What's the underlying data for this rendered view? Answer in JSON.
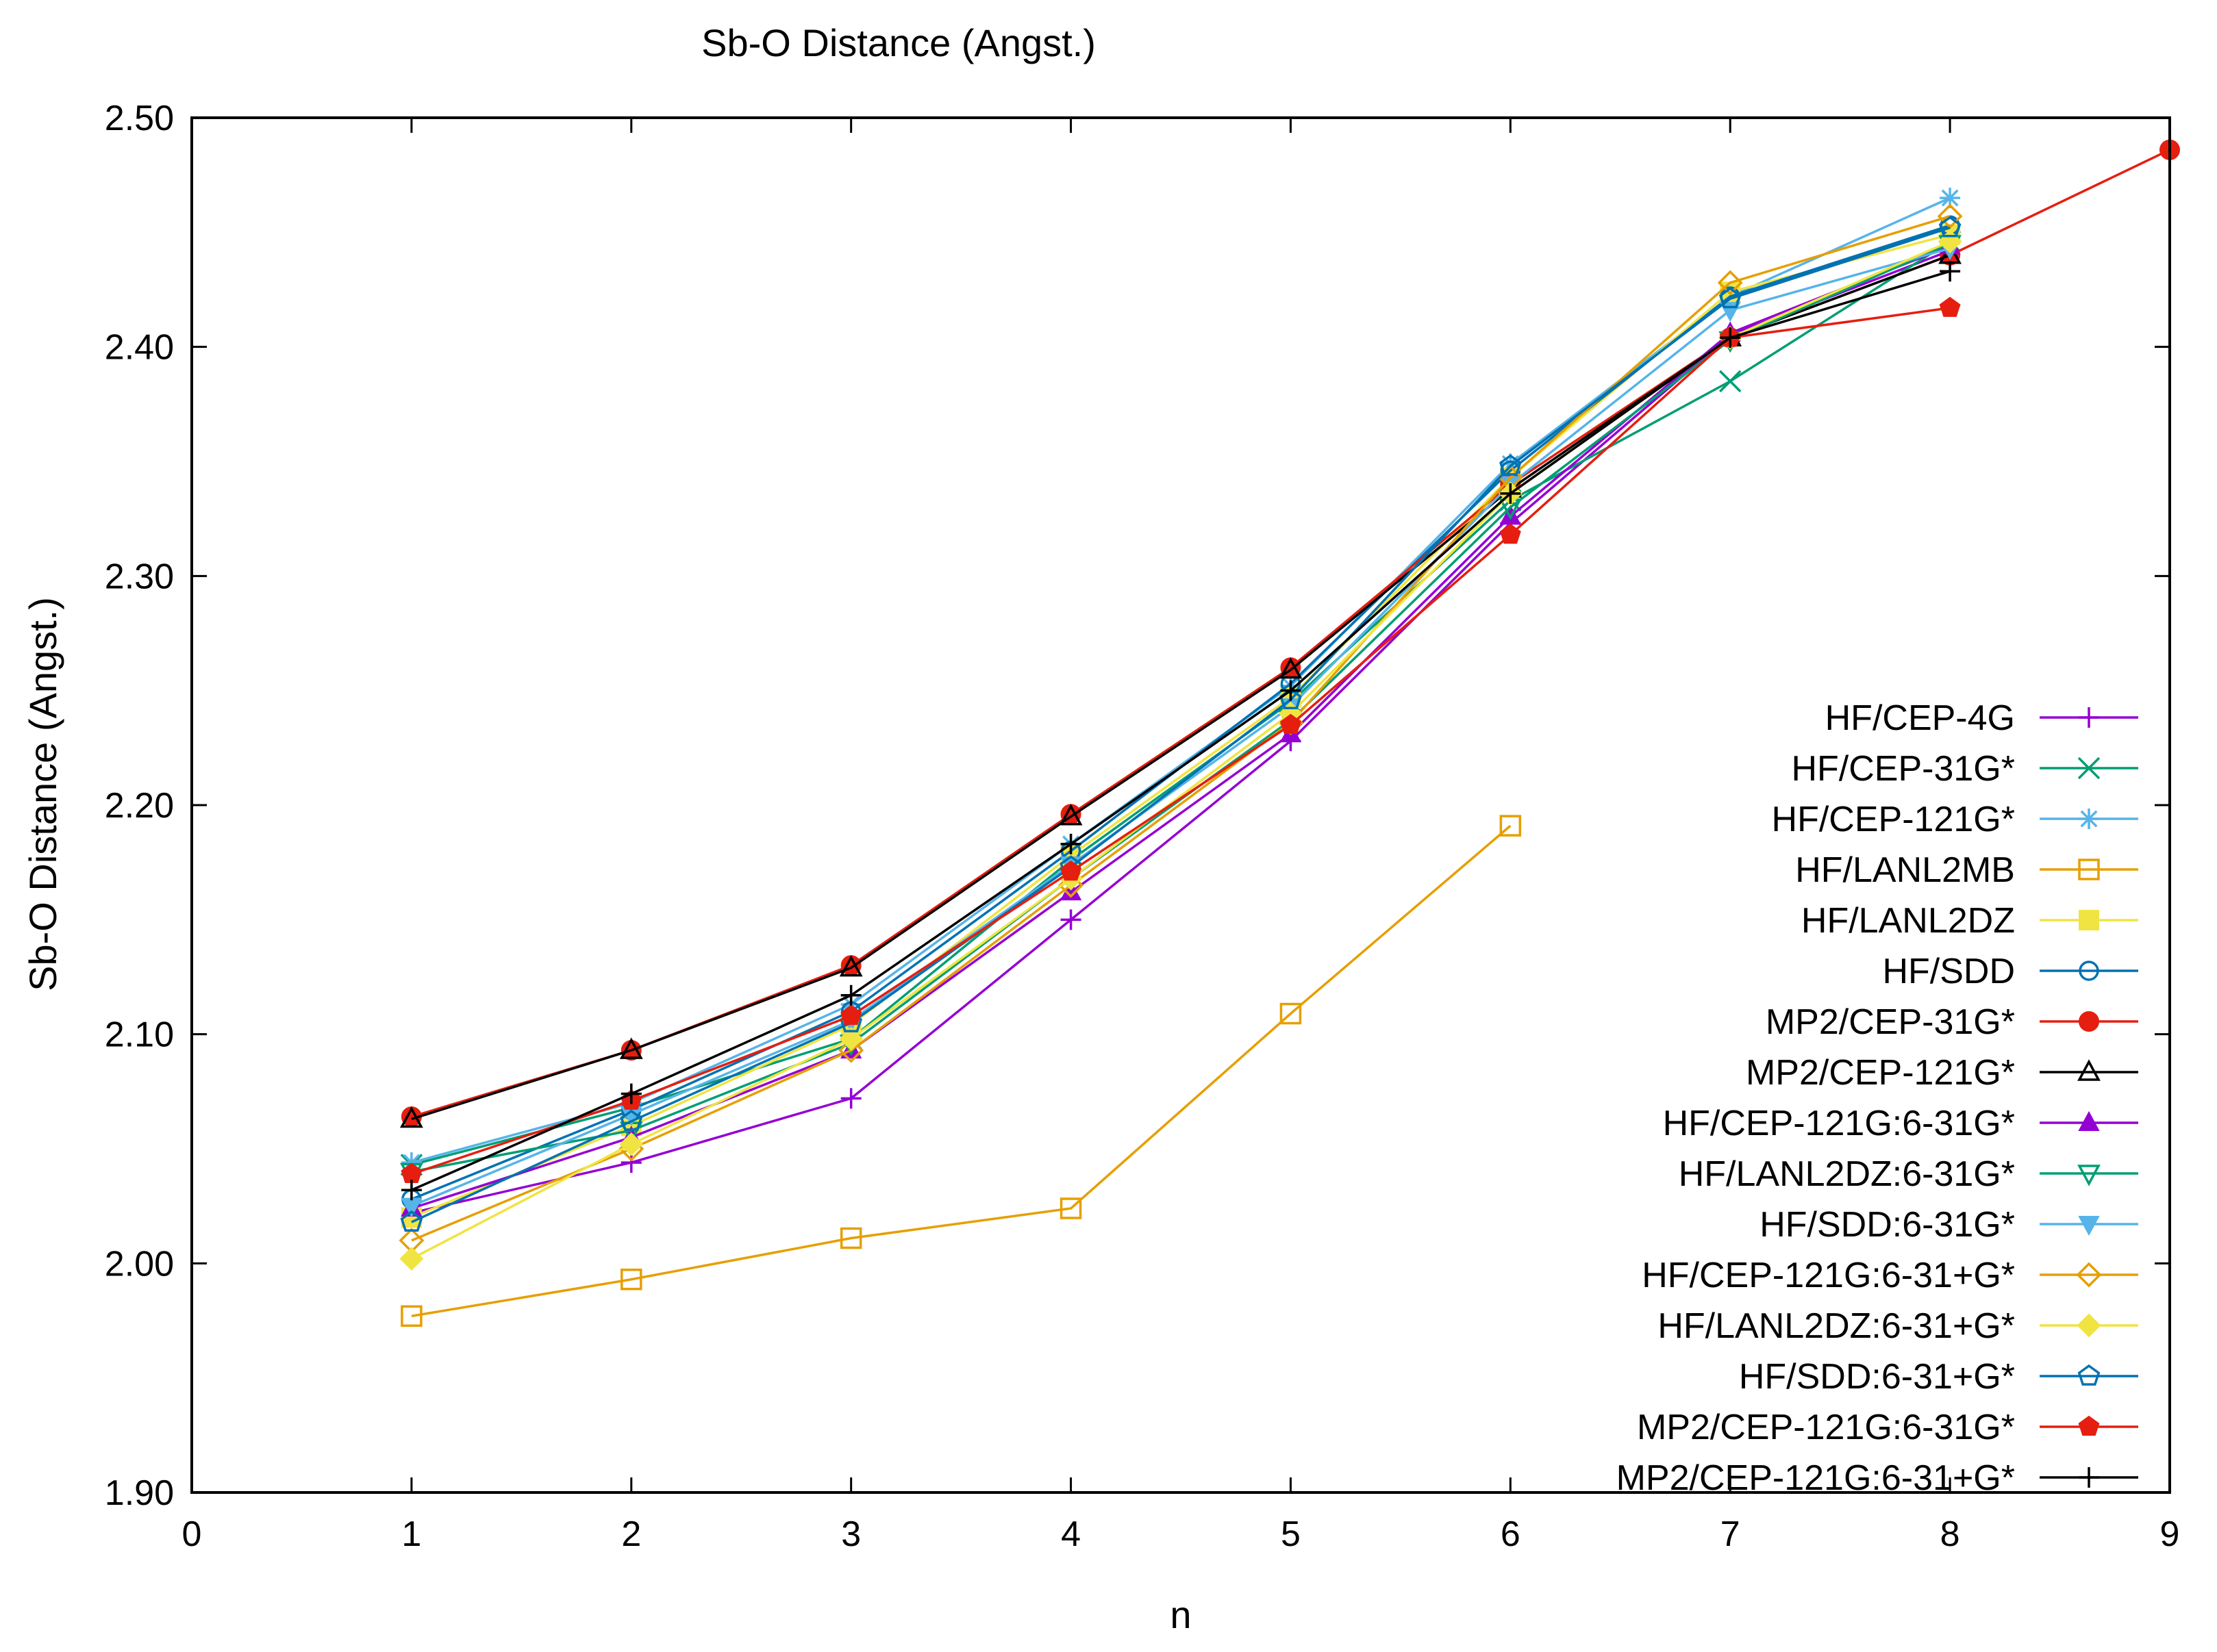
{
  "chart_data": {
    "type": "line",
    "title": "Sb-O Distance (Angst.)",
    "xlabel": "n",
    "ylabel": "Sb-O Distance (Angst.)",
    "xlim": [
      0,
      9
    ],
    "ylim": [
      1.9,
      2.5
    ],
    "xticks": [
      "0",
      "1",
      "2",
      "3",
      "4",
      "5",
      "6",
      "7",
      "8",
      "9"
    ],
    "yticks": [
      "1.90",
      "2.00",
      "2.10",
      "2.20",
      "2.30",
      "2.40",
      "2.50"
    ],
    "grid": false,
    "legend_position": "right",
    "series": [
      {
        "name": "HF/CEP-4G",
        "color": "#9400d3",
        "marker": "plus",
        "x": [
          1,
          2,
          3,
          4,
          5,
          6,
          7,
          8
        ],
        "y": [
          2.022,
          2.044,
          2.072,
          2.15,
          2.228,
          2.323,
          2.405,
          2.442
        ]
      },
      {
        "name": "HF/CEP-31G*",
        "color": "#009e73",
        "marker": "cross",
        "x": [
          1,
          2,
          3,
          4,
          5,
          6,
          7,
          8
        ],
        "y": [
          2.043,
          2.068,
          2.098,
          2.176,
          2.245,
          2.333,
          2.385,
          2.446
        ]
      },
      {
        "name": "HF/CEP-121G*",
        "color": "#56b4e9",
        "marker": "star",
        "x": [
          1,
          2,
          3,
          4,
          5,
          6,
          7,
          8
        ],
        "y": [
          2.044,
          2.07,
          2.113,
          2.183,
          2.252,
          2.349,
          2.422,
          2.465
        ]
      },
      {
        "name": "HF/LANL2MB",
        "color": "#e69f00",
        "marker": "square-open",
        "x": [
          1,
          2,
          3,
          4,
          5,
          6
        ],
        "y": [
          1.977,
          1.993,
          2.011,
          2.024,
          2.109,
          2.191
        ]
      },
      {
        "name": "HF/LANL2DZ",
        "color": "#f0e442",
        "marker": "square-filled",
        "x": [
          1,
          2,
          3,
          4,
          5,
          6,
          7,
          8
        ],
        "y": [
          2.02,
          2.06,
          2.104,
          2.178,
          2.247,
          2.343,
          2.424,
          2.449
        ]
      },
      {
        "name": "HF/SDD",
        "color": "#0072b2",
        "marker": "circle-open",
        "x": [
          1,
          2,
          3,
          4,
          5,
          6,
          7,
          8
        ],
        "y": [
          2.028,
          2.067,
          2.11,
          2.18,
          2.253,
          2.346,
          2.422,
          2.453
        ]
      },
      {
        "name": "MP2/CEP-31G*",
        "color": "#e51e10",
        "marker": "circle-filled",
        "x": [
          1,
          2,
          3,
          4,
          5,
          6,
          7,
          8,
          9
        ],
        "y": [
          2.064,
          2.093,
          2.13,
          2.196,
          2.26,
          2.34,
          2.404,
          2.44,
          2.486
        ]
      },
      {
        "name": "MP2/CEP-121G*",
        "color": "#000000",
        "marker": "triangle-open",
        "x": [
          1,
          2,
          3,
          4,
          5,
          6,
          7,
          8
        ],
        "y": [
          2.063,
          2.093,
          2.129,
          2.195,
          2.259,
          2.338,
          2.404,
          2.44
        ]
      },
      {
        "name": "HF/CEP-121G:6-31G*",
        "color": "#9400d3",
        "marker": "triangle-filled",
        "x": [
          1,
          2,
          3,
          4,
          5,
          6,
          7,
          8
        ],
        "y": [
          2.024,
          2.055,
          2.093,
          2.162,
          2.231,
          2.326,
          2.406,
          2.444
        ]
      },
      {
        "name": "HF/LANL2DZ:6-31G*",
        "color": "#009e73",
        "marker": "triangle-down-open",
        "x": [
          1,
          2,
          3,
          4,
          5,
          6,
          7,
          8
        ],
        "y": [
          2.04,
          2.058,
          2.096,
          2.168,
          2.237,
          2.33,
          2.403,
          2.445
        ]
      },
      {
        "name": "HF/SDD:6-31G*",
        "color": "#56b4e9",
        "marker": "triangle-down-filled",
        "x": [
          1,
          2,
          3,
          4,
          5,
          6,
          7,
          8
        ],
        "y": [
          2.025,
          2.065,
          2.106,
          2.174,
          2.243,
          2.34,
          2.416,
          2.443
        ]
      },
      {
        "name": "HF/CEP-121G:6-31+G*",
        "color": "#e69f00",
        "marker": "diamond-open",
        "x": [
          1,
          2,
          3,
          4,
          5,
          6,
          7,
          8
        ],
        "y": [
          2.01,
          2.05,
          2.093,
          2.165,
          2.236,
          2.343,
          2.428,
          2.457
        ]
      },
      {
        "name": "HF/LANL2DZ:6-31+G*",
        "color": "#f0e442",
        "marker": "diamond-filled",
        "x": [
          1,
          2,
          3,
          4,
          5,
          6,
          7,
          8
        ],
        "y": [
          2.002,
          2.052,
          2.098,
          2.168,
          2.24,
          2.336,
          2.404,
          2.446
        ]
      },
      {
        "name": "HF/SDD:6-31+G*",
        "color": "#0072b2",
        "marker": "pentagon-open",
        "x": [
          1,
          2,
          3,
          4,
          5,
          6,
          7,
          8
        ],
        "y": [
          2.018,
          2.062,
          2.105,
          2.173,
          2.246,
          2.348,
          2.421,
          2.452
        ]
      },
      {
        "name": "MP2/CEP-121G:6-31G*",
        "color": "#e51e10",
        "marker": "pentagon-filled",
        "x": [
          1,
          2,
          3,
          4,
          5,
          6,
          7,
          8
        ],
        "y": [
          2.039,
          2.071,
          2.108,
          2.171,
          2.235,
          2.318,
          2.404,
          2.417
        ]
      },
      {
        "name": "MP2/CEP-121G:6-31+G*",
        "color": "#000000",
        "marker": "plus",
        "x": [
          1,
          2,
          3,
          4,
          5,
          6,
          7,
          8
        ],
        "y": [
          2.032,
          2.074,
          2.117,
          2.183,
          2.25,
          2.336,
          2.404,
          2.433
        ]
      }
    ]
  }
}
